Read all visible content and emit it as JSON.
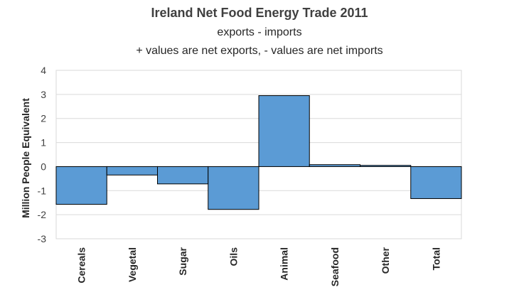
{
  "chart_data": {
    "type": "bar",
    "title": "Ireland Net Food Energy Trade 2011",
    "subtitles": [
      "exports - imports",
      "+ values are net exports,  - values are net imports"
    ],
    "xlabel": "",
    "ylabel": "Million People Equivalent",
    "categories": [
      "Cereals",
      "Vegetal",
      "Sugar",
      "Oils",
      "Animal",
      "Seafood",
      "Other",
      "Total"
    ],
    "values": [
      -1.57,
      -0.35,
      -0.72,
      -1.78,
      2.95,
      0.08,
      0.05,
      -1.33
    ],
    "ylim": [
      -3,
      4
    ],
    "yticks": [
      4,
      3,
      2,
      1,
      0,
      -1,
      -2,
      -3
    ],
    "grid": true,
    "legend": "none",
    "bar_color": "#5b9bd5",
    "bar_edge_color": "#000000"
  }
}
